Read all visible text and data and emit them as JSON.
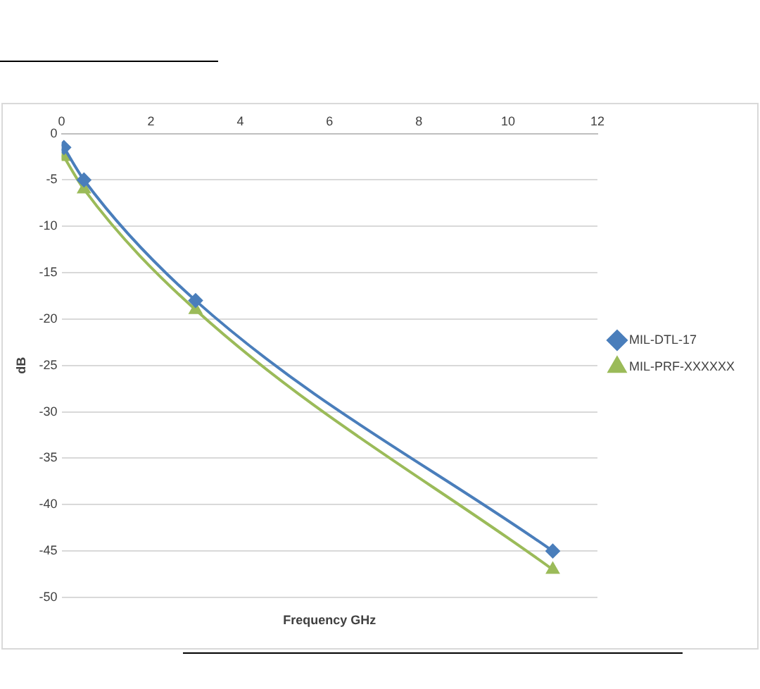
{
  "chart_data": {
    "type": "line",
    "xlabel": "Frequency GHz",
    "ylabel": "dB",
    "xlim": [
      0,
      12
    ],
    "xticks": [
      0,
      2,
      4,
      6,
      8,
      10,
      12
    ],
    "ylim": [
      -50,
      0
    ],
    "yticks": [
      -50,
      -45,
      -40,
      -35,
      -30,
      -25,
      -20,
      -15,
      -10,
      -5,
      0
    ],
    "grid": "y",
    "legend": "right",
    "line_style": "solid",
    "series": [
      {
        "name": "MIL-DTL-17",
        "color": "#4a7ebb",
        "marker": "diamond",
        "x": [
          0.05,
          0.5,
          3,
          11
        ],
        "values": [
          -1.5,
          -5,
          -18,
          -45
        ]
      },
      {
        "name": "MIL-PRF-XXXXXX",
        "color": "#9bbb59",
        "marker": "triangle",
        "x": [
          0.05,
          0.5,
          3,
          11
        ],
        "values": [
          -2.5,
          -6,
          -19,
          -47
        ]
      }
    ]
  }
}
